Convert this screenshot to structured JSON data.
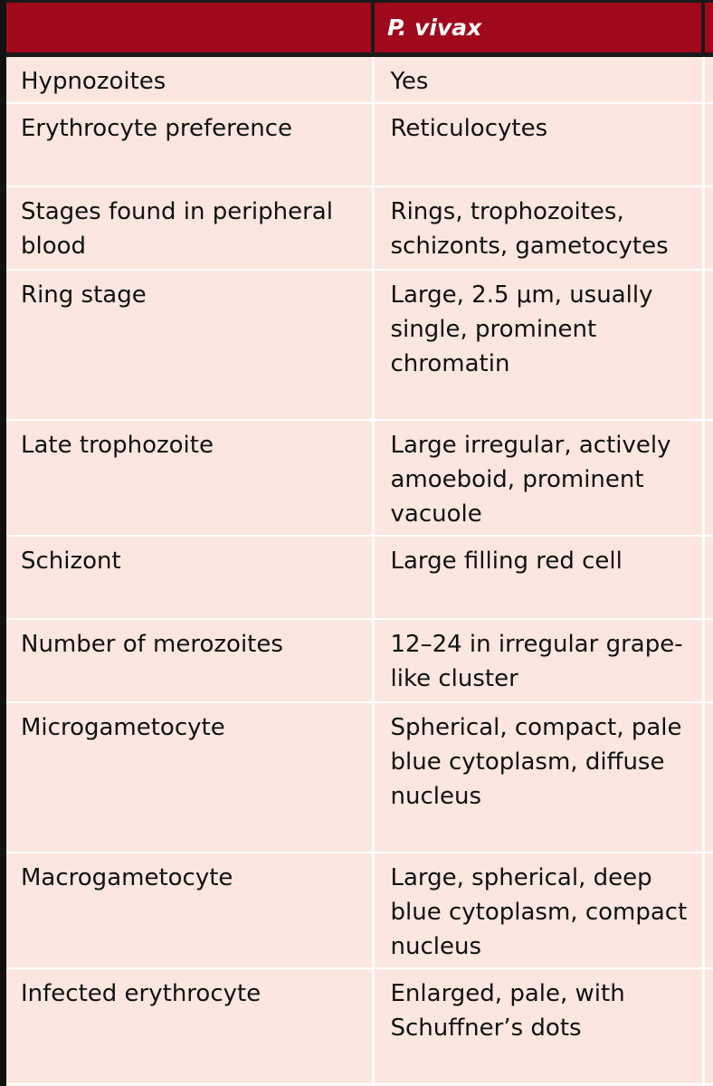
{
  "header": {
    "col1": "",
    "col2": "P. vivax",
    "col3": ""
  },
  "rows": [
    {
      "feature": "Hypnozoites",
      "value": "Yes"
    },
    {
      "feature": "Erythrocyte preference",
      "value": "Reticulocytes"
    },
    {
      "feature": "Stages found in peripheral blood",
      "value": "Rings, trophozoites, schizonts, gametocytes"
    },
    {
      "feature": "Ring stage",
      "value": "Large, 2.5 μm, usually single, prominent chromatin"
    },
    {
      "feature": "Late trophozoite",
      "value": "Large irregular, actively amoeboid, prominent vacuole"
    },
    {
      "feature": "Schizont",
      "value": "Large filling red cell"
    },
    {
      "feature": "Number of merozoites",
      "value": "12–24 in irregular grape-like cluster"
    },
    {
      "feature": "Microgametocyte",
      "value": "Spherical, compact, pale blue cytoplasm, diffuse nucleus"
    },
    {
      "feature": "Macrogametocyte",
      "value": "Large, spherical, deep blue cytoplasm, compact nucleus"
    },
    {
      "feature": "Infected erythrocyte",
      "value": "Enlarged, pale, with Schuffner’s dots"
    }
  ],
  "colors": {
    "header_bg": "#a0081c",
    "header_text": "#ffffff",
    "cell_bg": "#fbe7df",
    "cell_text": "#111111",
    "border_dark": "#1a1a1a"
  }
}
